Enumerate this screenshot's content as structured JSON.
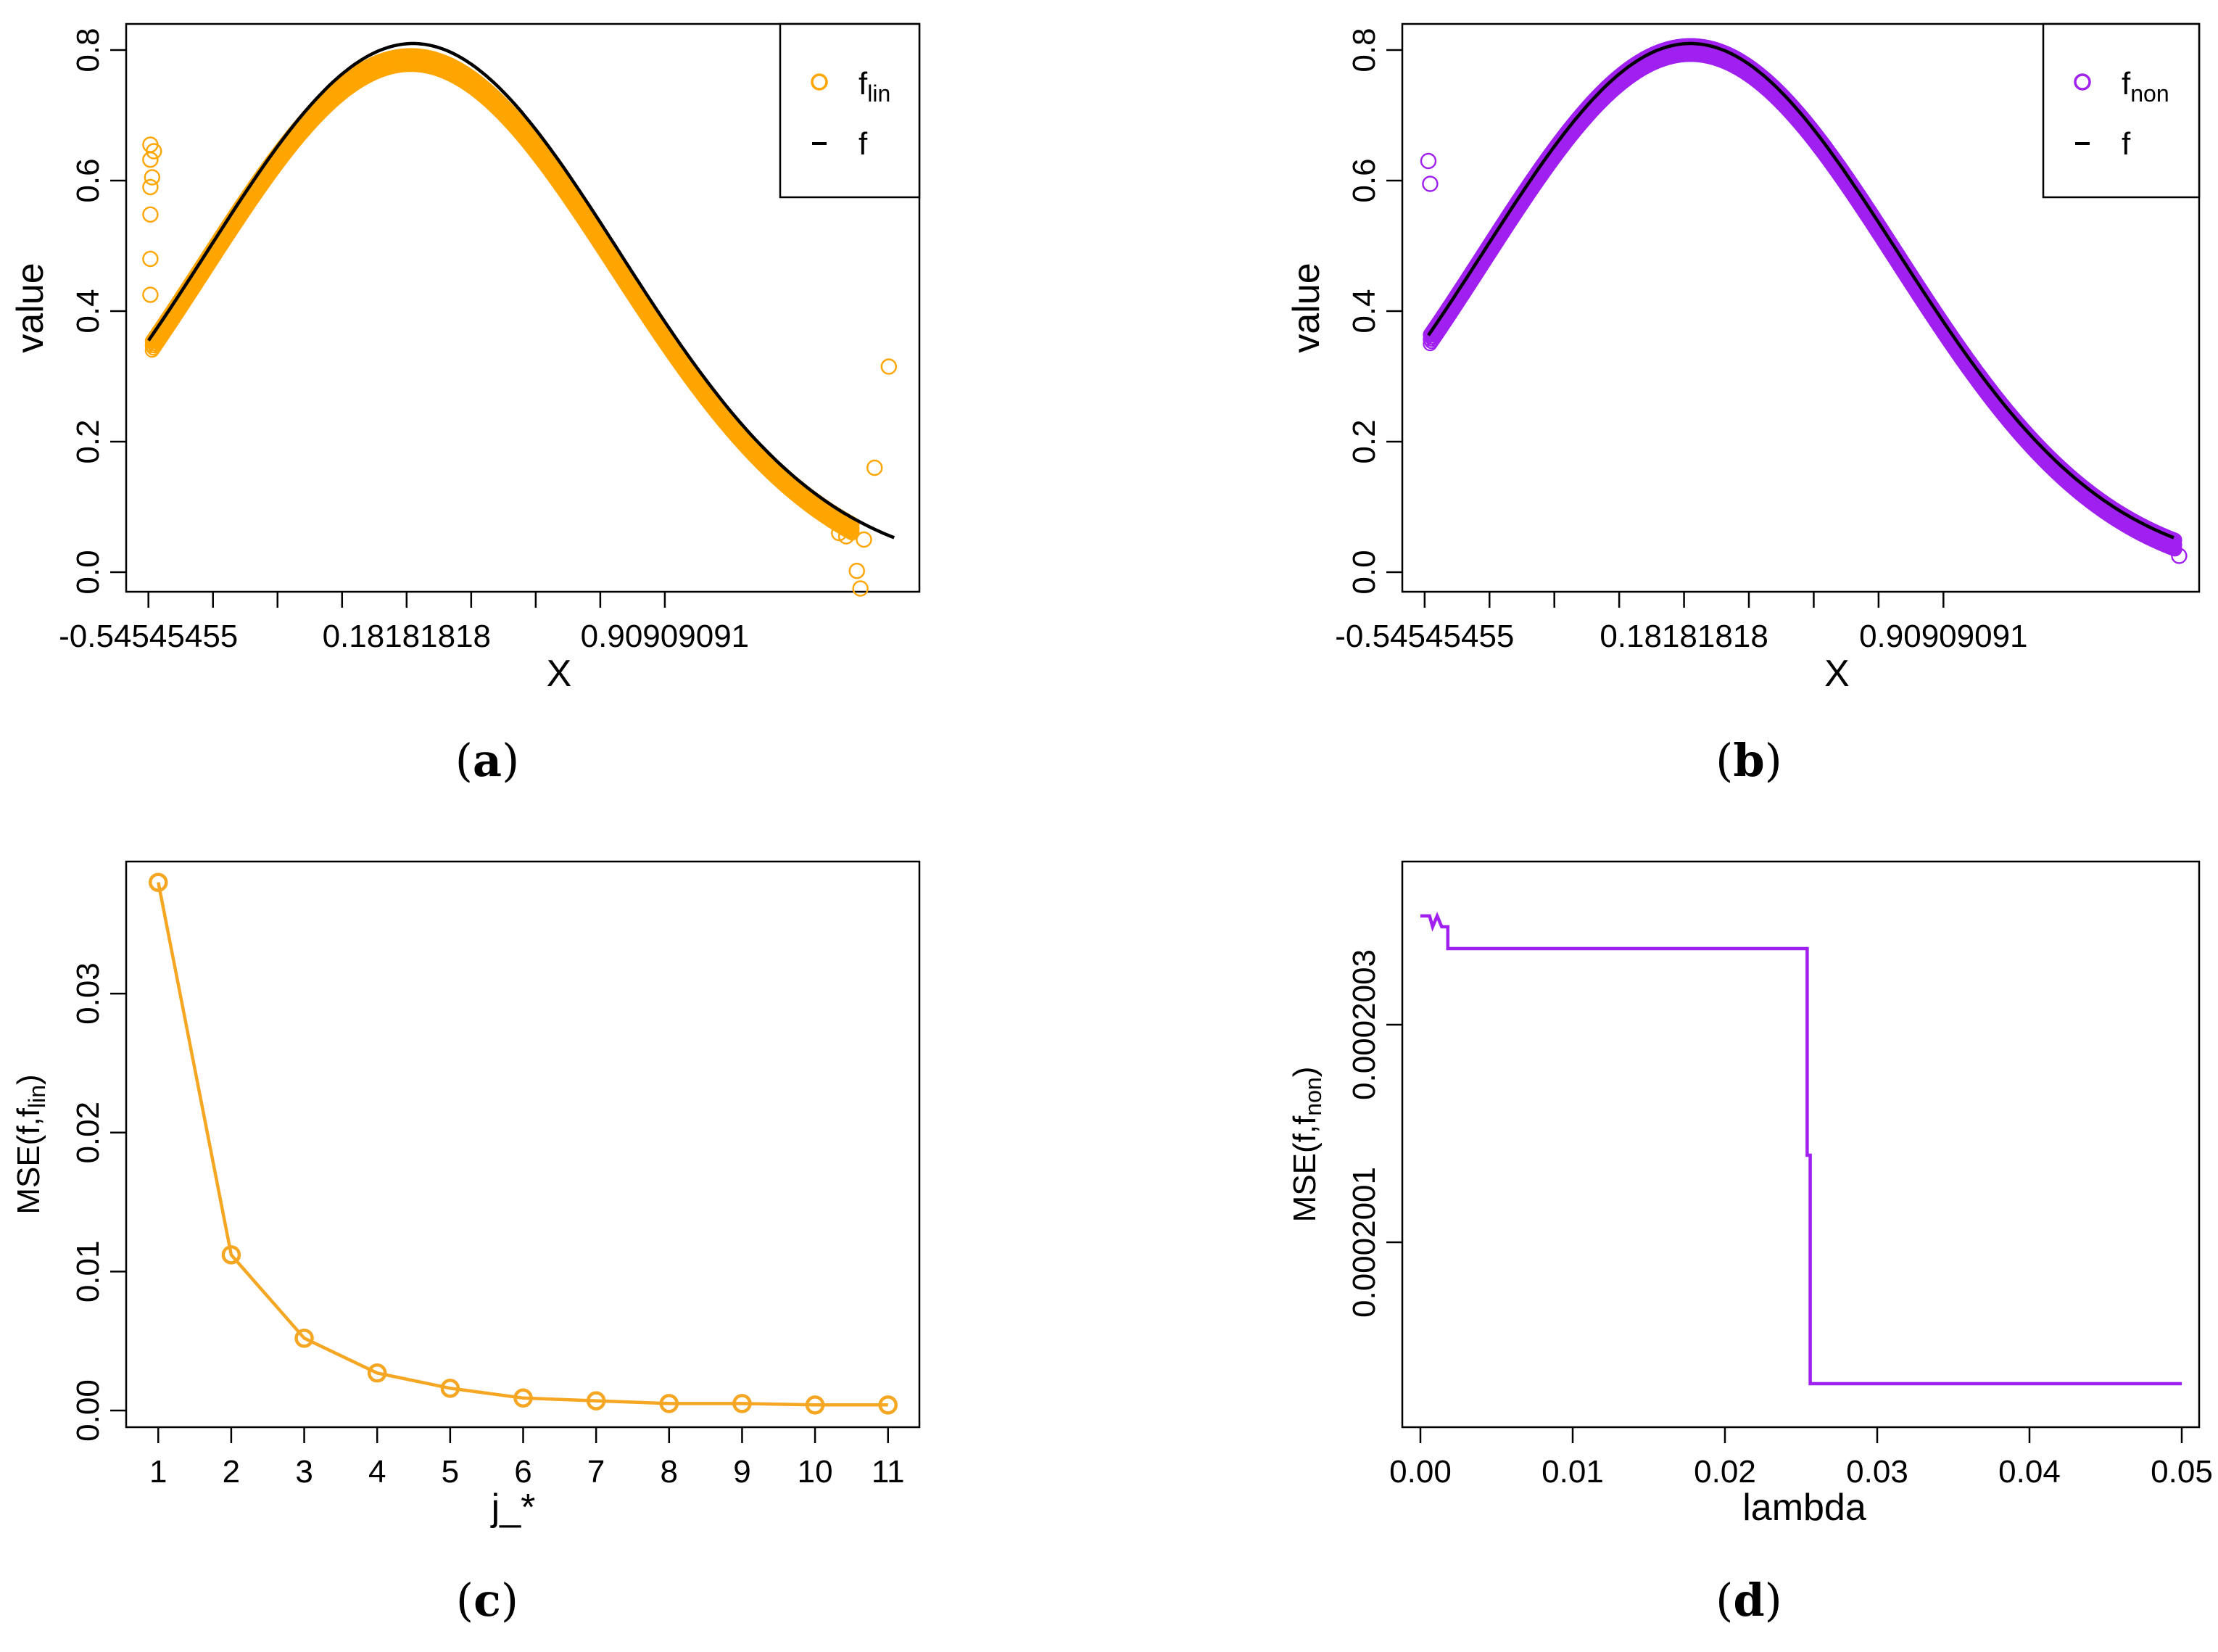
{
  "chart_data": [
    {
      "type": "scatter",
      "panel": "a",
      "caption_letter": "a",
      "xlabel": "X",
      "ylabel": "value",
      "x_ticks": [
        "-0.54545455",
        "0.18181818",
        "0.90909091"
      ],
      "x_tick_values": [
        -0.54545455,
        0.18181818,
        0.90909091
      ],
      "xlim": [
        -0.6,
        1.62
      ],
      "ylim": [
        -0.03,
        0.84
      ],
      "y_ticks": [
        "0.0",
        "0.2",
        "0.4",
        "0.6",
        "0.8"
      ],
      "y_tick_values": [
        0.0,
        0.2,
        0.4,
        0.6,
        0.8
      ],
      "legend": [
        {
          "symbol": "o",
          "label": "f",
          "sub": "lin",
          "color": "#FFA500"
        },
        {
          "symbol": "line",
          "label": "f",
          "sub": "",
          "color": "#000000"
        }
      ],
      "series_color": "#FFA500",
      "true_curve": "0.81*exp(-(x-0.2)^2/(2*0.58^2))",
      "outliers": [
        {
          "x": -0.54,
          "y": 0.425
        },
        {
          "x": -0.54,
          "y": 0.48
        },
        {
          "x": -0.54,
          "y": 0.548
        },
        {
          "x": -0.54,
          "y": 0.59
        },
        {
          "x": -0.535,
          "y": 0.605
        },
        {
          "x": -0.54,
          "y": 0.632
        },
        {
          "x": -0.53,
          "y": 0.645
        },
        {
          "x": -0.54,
          "y": 0.655
        },
        {
          "x": 1.4,
          "y": 0.06
        },
        {
          "x": 1.42,
          "y": 0.055
        },
        {
          "x": 1.43,
          "y": 0.065
        },
        {
          "x": 1.45,
          "y": 0.002
        },
        {
          "x": 1.47,
          "y": 0.05
        },
        {
          "x": 1.46,
          "y": -0.025
        },
        {
          "x": 1.5,
          "y": 0.16
        },
        {
          "x": 1.54,
          "y": 0.315
        }
      ]
    },
    {
      "type": "scatter",
      "panel": "b",
      "caption_letter": "b",
      "xlabel": "X",
      "ylabel": "value",
      "x_ticks": [
        "-0.54545455",
        "0.18181818",
        "0.90909091"
      ],
      "x_tick_values": [
        -0.54545455,
        0.18181818,
        0.90909091
      ],
      "xlim": [
        -0.6,
        1.62
      ],
      "ylim": [
        -0.03,
        0.84
      ],
      "y_ticks": [
        "0.0",
        "0.2",
        "0.4",
        "0.6",
        "0.8"
      ],
      "y_tick_values": [
        0.0,
        0.2,
        0.4,
        0.6,
        0.8
      ],
      "legend": [
        {
          "symbol": "o",
          "label": "f",
          "sub": "non",
          "color": "#A020F0"
        },
        {
          "symbol": "line",
          "label": "f",
          "sub": "",
          "color": "#000000"
        }
      ],
      "series_color": "#A020F0",
      "true_curve": "0.81*exp(-(x-0.2)^2/(2*0.58^2))",
      "outliers": [
        {
          "x": -0.53,
          "y": 0.595
        },
        {
          "x": -0.535,
          "y": 0.63
        },
        {
          "x": 1.57,
          "y": 0.025
        }
      ]
    },
    {
      "type": "line",
      "panel": "c",
      "caption_letter": "c",
      "xlabel": "j_*",
      "ylabel": "MSE(f,f",
      "ylabel_sub": "lin",
      "ylabel_end": ")",
      "categories": [
        1,
        2,
        3,
        4,
        5,
        6,
        7,
        8,
        9,
        10,
        11
      ],
      "x_ticks": [
        "1",
        "2",
        "3",
        "4",
        "5",
        "6",
        "7",
        "8",
        "9",
        "10",
        "11"
      ],
      "values": [
        0.038,
        0.0112,
        0.0052,
        0.0027,
        0.0016,
        0.0009,
        0.0007,
        0.0005,
        0.0005,
        0.0004,
        0.0004
      ],
      "xlim": [
        0.6,
        11.4
      ],
      "ylim": [
        -0.0012,
        0.0395
      ],
      "y_ticks": [
        "0.00",
        "0.01",
        "0.02",
        "0.03"
      ],
      "y_tick_values": [
        0.0,
        0.01,
        0.02,
        0.03
      ],
      "color": "#F5A623"
    },
    {
      "type": "line",
      "panel": "d",
      "caption_letter": "d",
      "xlabel": "lambda",
      "ylabel": "MSE(f,f",
      "ylabel_sub": "non",
      "ylabel_end": ")",
      "x": [
        0.0,
        0.0006,
        0.0008,
        0.0011,
        0.0014,
        0.0016,
        0.0017,
        0.0018,
        0.0018,
        0.0254,
        0.0254,
        0.0255,
        0.0255,
        0.0256,
        0.0256,
        0.05
      ],
      "values": [
        0.0002004,
        0.0002004,
        0.00020039,
        0.0002004,
        0.00020039,
        0.00020039,
        0.00020039,
        0.00020039,
        0.00020037,
        0.00020037,
        0.00020018,
        0.00020018,
        0.00020018,
        0.00020018,
        0.00019997,
        0.00019997
      ],
      "xlim": [
        -0.001,
        0.051
      ],
      "ylim": [
        0.00019993,
        0.00020045
      ],
      "x_ticks": [
        "0.00",
        "0.01",
        "0.02",
        "0.03",
        "0.04",
        "0.05"
      ],
      "x_tick_values": [
        0.0,
        0.01,
        0.02,
        0.03,
        0.04,
        0.05
      ],
      "y_ticks": [
        "0.0002001",
        "0.0002003"
      ],
      "y_tick_values": [
        0.0002001,
        0.0002003
      ],
      "color": "#A020F0"
    }
  ]
}
